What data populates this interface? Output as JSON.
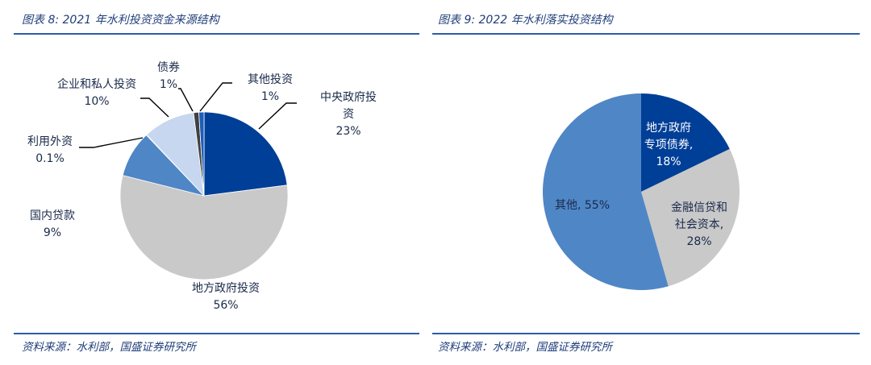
{
  "left": {
    "title": "图表 8:  2021 年水利投资资金来源结构",
    "source": "资料来源：水利部，国盛证券研究所"
  },
  "right": {
    "title": "图表 9:  2022 年水利落实投资结构",
    "source": "资料来源：水利部，国盛证券研究所"
  },
  "chart_data": [
    {
      "type": "pie",
      "title": "图表 8:  2021 年水利投资资金来源结构",
      "slices": [
        {
          "label_lines": [
            "中央政府投",
            "资"
          ],
          "value_text": "23%",
          "value": 23,
          "color": "#003f97"
        },
        {
          "label_lines": [
            "地方政府投资"
          ],
          "value_text": "56%",
          "value": 56,
          "color": "#c9c9c9"
        },
        {
          "label_lines": [
            "国内贷款"
          ],
          "value_text": "9%",
          "value": 9,
          "color": "#4f86c6"
        },
        {
          "label_lines": [
            "利用外资"
          ],
          "value_text": "0.1%",
          "value": 0.1,
          "color": "#1b3f8f"
        },
        {
          "label_lines": [
            "企业和私人投资"
          ],
          "value_text": "10%",
          "value": 10,
          "color": "#c6d7ef"
        },
        {
          "label_lines": [
            "债券"
          ],
          "value_text": "1%",
          "value": 1,
          "color": "#404040"
        },
        {
          "label_lines": [
            "其他投资"
          ],
          "value_text": "1%",
          "value": 1,
          "color": "#1d5cb8"
        }
      ]
    },
    {
      "type": "pie",
      "title": "图表 9:  2022 年水利落实投资结构",
      "slices": [
        {
          "label_lines": [
            "地方政府",
            "专项债券,"
          ],
          "value_text": "18%",
          "value": 18,
          "color": "#003f97"
        },
        {
          "label_lines": [
            "金融信贷和",
            "社会资本,"
          ],
          "value_text": "28%",
          "value": 28,
          "color": "#c9c9c9"
        },
        {
          "label_lines": [
            "其他, 55%"
          ],
          "value_text": "",
          "value": 55,
          "color": "#4f86c6"
        }
      ]
    }
  ]
}
